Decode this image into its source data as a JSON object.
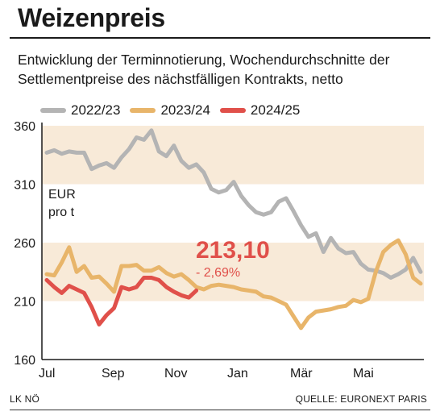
{
  "title": "Weizenpreis",
  "subtitle": "Entwicklung der Terminnotierung, Wochendurchschnitte der Settlementpreise des nächstfälligen Kontrakts, netto",
  "footer": {
    "left": "LK NÖ",
    "right": "QUELLE: EURONEXT PARIS"
  },
  "colors": {
    "2022/23": "#b4b4b4",
    "2023/24": "#e8b56a",
    "2024/25": "#e0504a",
    "band": "#f8ead8",
    "value": "#e0504a"
  },
  "chart_data": {
    "type": "line",
    "ylim": [
      160,
      360
    ],
    "yticks": [
      160,
      210,
      260,
      310,
      360
    ],
    "ylabel": "EUR\npro t",
    "xlabels": [
      "Jul",
      "Sep",
      "Nov",
      "Jan",
      "Mär",
      "Mai"
    ],
    "bands": [
      [
        310,
        360
      ],
      [
        210,
        260
      ]
    ],
    "grid": false,
    "legend": "top",
    "annotation": {
      "value": "213,10",
      "change": "- 2,69%"
    },
    "series": [
      {
        "name": "2022/23",
        "values": [
          337,
          339,
          336,
          338,
          337,
          337,
          323,
          326,
          328,
          324,
          333,
          340,
          350,
          348,
          356,
          338,
          334,
          343,
          330,
          324,
          327,
          320,
          306,
          303,
          305,
          312,
          300,
          292,
          286,
          284,
          286,
          295,
          298,
          287,
          275,
          265,
          268,
          252,
          264,
          255,
          251,
          252,
          242,
          237,
          236,
          234,
          230,
          233,
          237,
          247,
          235
        ]
      },
      {
        "name": "2023/24",
        "values": [
          233,
          232,
          243,
          256,
          235,
          240,
          230,
          231,
          225,
          218,
          240,
          240,
          241,
          236,
          236,
          239,
          234,
          231,
          233,
          228,
          222,
          220,
          223,
          224,
          223,
          222,
          220,
          219,
          218,
          214,
          213,
          210,
          207,
          197,
          187,
          196,
          201,
          202,
          203,
          205,
          206,
          211,
          209,
          212,
          235,
          252,
          258,
          262,
          250,
          230,
          225
        ]
      },
      {
        "name": "2024/25",
        "values": [
          228,
          222,
          217,
          223,
          220,
          217,
          205,
          190,
          198,
          204,
          222,
          220,
          222,
          230,
          230,
          228,
          222,
          218,
          215,
          213,
          219
        ]
      }
    ]
  }
}
